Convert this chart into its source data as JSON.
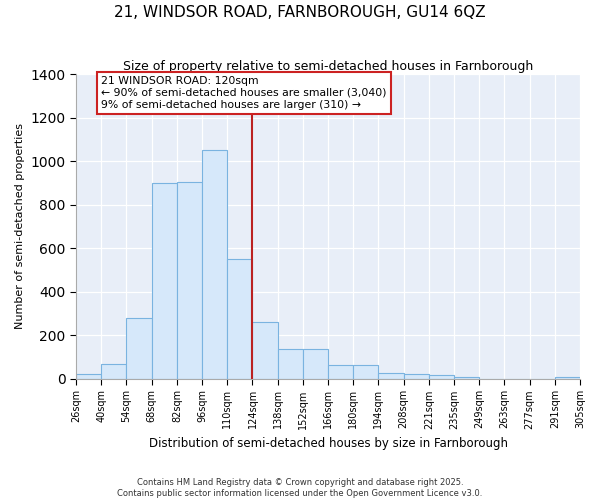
{
  "title": "21, WINDSOR ROAD, FARNBOROUGH, GU14 6QZ",
  "subtitle": "Size of property relative to semi-detached houses in Farnborough",
  "xlabel": "Distribution of semi-detached houses by size in Farnborough",
  "ylabel": "Number of semi-detached properties",
  "footnote1": "Contains HM Land Registry data © Crown copyright and database right 2025.",
  "footnote2": "Contains public sector information licensed under the Open Government Licence v3.0.",
  "bin_labels": [
    "26sqm",
    "40sqm",
    "54sqm",
    "68sqm",
    "82sqm",
    "96sqm",
    "110sqm",
    "124sqm",
    "138sqm",
    "152sqm",
    "166sqm",
    "180sqm",
    "194sqm",
    "208sqm",
    "221sqm",
    "235sqm",
    "249sqm",
    "263sqm",
    "277sqm",
    "291sqm",
    "305sqm"
  ],
  "bar_values": [
    20,
    68,
    280,
    900,
    905,
    1050,
    550,
    260,
    135,
    135,
    63,
    63,
    25,
    20,
    15,
    10,
    0,
    0,
    0,
    10
  ],
  "bar_color": "#d6e8fa",
  "bar_edge_color": "#7ab3e0",
  "vline_color": "#bb2222",
  "vline_x": 7.0,
  "annotation_text": "21 WINDSOR ROAD: 120sqm\n← 90% of semi-detached houses are smaller (3,040)\n9% of semi-detached houses are larger (310) →",
  "annotation_box_color": "#ffffff",
  "annotation_box_edge_color": "#cc2222",
  "ylim": [
    0,
    1400
  ],
  "fig_background_color": "#ffffff",
  "plot_background_color": "#e8eef8"
}
